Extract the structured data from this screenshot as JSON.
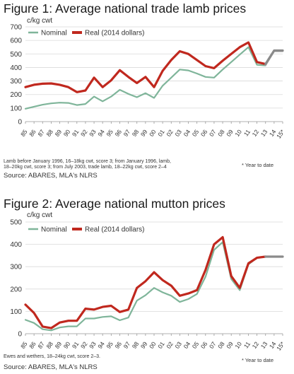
{
  "chart_data": [
    {
      "type": "line",
      "title": "Figure 1: Average national trade lamb prices",
      "ylabel": "c/kg cwt",
      "xlabel": "",
      "ylim": [
        0,
        700
      ],
      "yticks": [
        0,
        100,
        200,
        300,
        400,
        500,
        600,
        700
      ],
      "grid": true,
      "legend": "top-left",
      "categories": [
        "85",
        "86",
        "87",
        "88",
        "89",
        "90",
        "91",
        "92",
        "93",
        "94",
        "95",
        "96",
        "97",
        "98",
        "99",
        "00",
        "01",
        "02",
        "03",
        "04",
        "05",
        "06",
        "07",
        "08",
        "09",
        "10",
        "11",
        "12",
        "13",
        "14",
        "15*"
      ],
      "series": [
        {
          "name": "Nominal",
          "color": "#7fb59a",
          "style": "green-line",
          "values": [
            95,
            110,
            125,
            135,
            140,
            138,
            122,
            130,
            185,
            150,
            185,
            235,
            205,
            180,
            210,
            175,
            265,
            325,
            385,
            378,
            355,
            330,
            325,
            385,
            440,
            495,
            550,
            420,
            415,
            520,
            520
          ]
        },
        {
          "name": "Real (2014 dollars)",
          "color": "#c0281e",
          "style": "red-line",
          "values": [
            255,
            272,
            280,
            282,
            272,
            255,
            218,
            230,
            325,
            255,
            305,
            380,
            330,
            285,
            330,
            255,
            375,
            455,
            520,
            500,
            455,
            410,
            395,
            450,
            500,
            550,
            585,
            440,
            425,
            525,
            525
          ]
        }
      ],
      "highlight_from": "13",
      "note": "Lamb before January 1996, 16–18kg cwt, score 3; from January 1996, lamb, 18–20kg cwt, score 3; from July 2003, trade lamb, 18–22kg cwt, score 2–4",
      "ytd_note": "* Year to date",
      "source": "Source: ABARES, MLA's NLRS"
    },
    {
      "type": "line",
      "title": "Figure 2: Average national mutton prices",
      "ylabel": "c/kg cwt",
      "xlabel": "",
      "ylim": [
        0,
        500
      ],
      "yticks": [
        0,
        100,
        200,
        300,
        400,
        500
      ],
      "grid": true,
      "legend": "top-left",
      "categories": [
        "85",
        "86",
        "87",
        "88",
        "89",
        "90",
        "91",
        "92",
        "93",
        "94",
        "95",
        "96",
        "97",
        "98",
        "99",
        "00",
        "01",
        "02",
        "03",
        "04",
        "05",
        "06",
        "07",
        "08",
        "09",
        "10",
        "11",
        "12",
        "13",
        "14",
        "15*"
      ],
      "series": [
        {
          "name": "Nominal",
          "color": "#7fb59a",
          "style": "green-line",
          "values": [
            62,
            48,
            20,
            15,
            28,
            33,
            33,
            68,
            68,
            75,
            78,
            60,
            72,
            148,
            172,
            205,
            185,
            170,
            142,
            155,
            178,
            255,
            375,
            410,
            245,
            195,
            310,
            340,
            345,
            345,
            345
          ]
        },
        {
          "name": "Real (2014 dollars)",
          "color": "#c0281e",
          "style": "red-line",
          "values": [
            130,
            93,
            32,
            25,
            50,
            58,
            58,
            112,
            108,
            120,
            125,
            97,
            108,
            205,
            235,
            275,
            240,
            215,
            170,
            180,
            195,
            285,
            400,
            432,
            258,
            205,
            315,
            340,
            345,
            345,
            345
          ]
        }
      ],
      "highlight_from": "13",
      "note": "Ewes and wethers, 18–24kg cwt, score 2–3.",
      "ytd_note": "* Year to date",
      "source": "Source: ABARES, MLA's NLRS"
    }
  ]
}
